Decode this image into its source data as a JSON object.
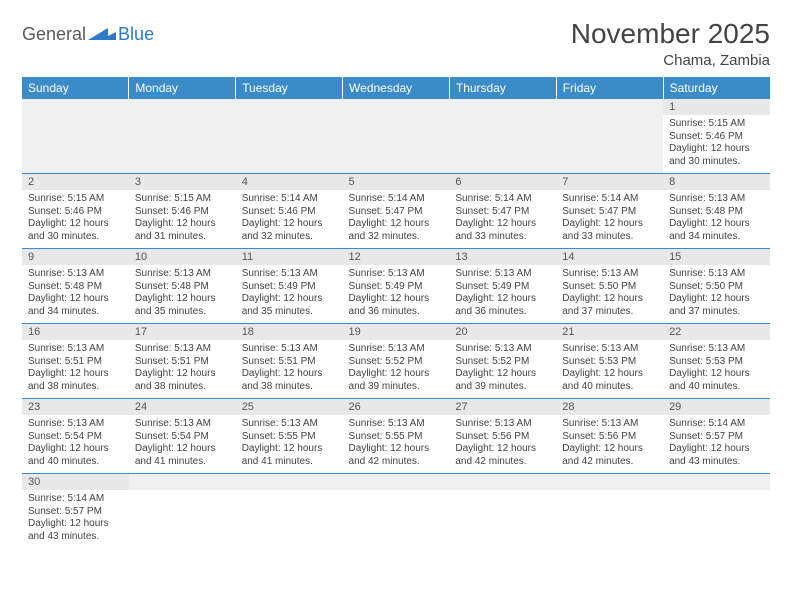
{
  "brand": {
    "text1": "General",
    "text2": "Blue"
  },
  "title": "November 2025",
  "location": "Chama, Zambia",
  "colors": {
    "header_bg": "#3b8bc9",
    "header_text": "#ffffff",
    "daynum_bg": "#e8e8e8",
    "cell_border": "#3b8bc9",
    "empty_bg": "#f0f0f0",
    "text": "#444444",
    "brand_gray": "#5a5a5a",
    "brand_blue": "#2d7bc4"
  },
  "weekdays": [
    "Sunday",
    "Monday",
    "Tuesday",
    "Wednesday",
    "Thursday",
    "Friday",
    "Saturday"
  ],
  "weeks": [
    [
      null,
      null,
      null,
      null,
      null,
      null,
      {
        "n": "1",
        "sr": "Sunrise: 5:15 AM",
        "ss": "Sunset: 5:46 PM",
        "d1": "Daylight: 12 hours",
        "d2": "and 30 minutes."
      }
    ],
    [
      {
        "n": "2",
        "sr": "Sunrise: 5:15 AM",
        "ss": "Sunset: 5:46 PM",
        "d1": "Daylight: 12 hours",
        "d2": "and 30 minutes."
      },
      {
        "n": "3",
        "sr": "Sunrise: 5:15 AM",
        "ss": "Sunset: 5:46 PM",
        "d1": "Daylight: 12 hours",
        "d2": "and 31 minutes."
      },
      {
        "n": "4",
        "sr": "Sunrise: 5:14 AM",
        "ss": "Sunset: 5:46 PM",
        "d1": "Daylight: 12 hours",
        "d2": "and 32 minutes."
      },
      {
        "n": "5",
        "sr": "Sunrise: 5:14 AM",
        "ss": "Sunset: 5:47 PM",
        "d1": "Daylight: 12 hours",
        "d2": "and 32 minutes."
      },
      {
        "n": "6",
        "sr": "Sunrise: 5:14 AM",
        "ss": "Sunset: 5:47 PM",
        "d1": "Daylight: 12 hours",
        "d2": "and 33 minutes."
      },
      {
        "n": "7",
        "sr": "Sunrise: 5:14 AM",
        "ss": "Sunset: 5:47 PM",
        "d1": "Daylight: 12 hours",
        "d2": "and 33 minutes."
      },
      {
        "n": "8",
        "sr": "Sunrise: 5:13 AM",
        "ss": "Sunset: 5:48 PM",
        "d1": "Daylight: 12 hours",
        "d2": "and 34 minutes."
      }
    ],
    [
      {
        "n": "9",
        "sr": "Sunrise: 5:13 AM",
        "ss": "Sunset: 5:48 PM",
        "d1": "Daylight: 12 hours",
        "d2": "and 34 minutes."
      },
      {
        "n": "10",
        "sr": "Sunrise: 5:13 AM",
        "ss": "Sunset: 5:48 PM",
        "d1": "Daylight: 12 hours",
        "d2": "and 35 minutes."
      },
      {
        "n": "11",
        "sr": "Sunrise: 5:13 AM",
        "ss": "Sunset: 5:49 PM",
        "d1": "Daylight: 12 hours",
        "d2": "and 35 minutes."
      },
      {
        "n": "12",
        "sr": "Sunrise: 5:13 AM",
        "ss": "Sunset: 5:49 PM",
        "d1": "Daylight: 12 hours",
        "d2": "and 36 minutes."
      },
      {
        "n": "13",
        "sr": "Sunrise: 5:13 AM",
        "ss": "Sunset: 5:49 PM",
        "d1": "Daylight: 12 hours",
        "d2": "and 36 minutes."
      },
      {
        "n": "14",
        "sr": "Sunrise: 5:13 AM",
        "ss": "Sunset: 5:50 PM",
        "d1": "Daylight: 12 hours",
        "d2": "and 37 minutes."
      },
      {
        "n": "15",
        "sr": "Sunrise: 5:13 AM",
        "ss": "Sunset: 5:50 PM",
        "d1": "Daylight: 12 hours",
        "d2": "and 37 minutes."
      }
    ],
    [
      {
        "n": "16",
        "sr": "Sunrise: 5:13 AM",
        "ss": "Sunset: 5:51 PM",
        "d1": "Daylight: 12 hours",
        "d2": "and 38 minutes."
      },
      {
        "n": "17",
        "sr": "Sunrise: 5:13 AM",
        "ss": "Sunset: 5:51 PM",
        "d1": "Daylight: 12 hours",
        "d2": "and 38 minutes."
      },
      {
        "n": "18",
        "sr": "Sunrise: 5:13 AM",
        "ss": "Sunset: 5:51 PM",
        "d1": "Daylight: 12 hours",
        "d2": "and 38 minutes."
      },
      {
        "n": "19",
        "sr": "Sunrise: 5:13 AM",
        "ss": "Sunset: 5:52 PM",
        "d1": "Daylight: 12 hours",
        "d2": "and 39 minutes."
      },
      {
        "n": "20",
        "sr": "Sunrise: 5:13 AM",
        "ss": "Sunset: 5:52 PM",
        "d1": "Daylight: 12 hours",
        "d2": "and 39 minutes."
      },
      {
        "n": "21",
        "sr": "Sunrise: 5:13 AM",
        "ss": "Sunset: 5:53 PM",
        "d1": "Daylight: 12 hours",
        "d2": "and 40 minutes."
      },
      {
        "n": "22",
        "sr": "Sunrise: 5:13 AM",
        "ss": "Sunset: 5:53 PM",
        "d1": "Daylight: 12 hours",
        "d2": "and 40 minutes."
      }
    ],
    [
      {
        "n": "23",
        "sr": "Sunrise: 5:13 AM",
        "ss": "Sunset: 5:54 PM",
        "d1": "Daylight: 12 hours",
        "d2": "and 40 minutes."
      },
      {
        "n": "24",
        "sr": "Sunrise: 5:13 AM",
        "ss": "Sunset: 5:54 PM",
        "d1": "Daylight: 12 hours",
        "d2": "and 41 minutes."
      },
      {
        "n": "25",
        "sr": "Sunrise: 5:13 AM",
        "ss": "Sunset: 5:55 PM",
        "d1": "Daylight: 12 hours",
        "d2": "and 41 minutes."
      },
      {
        "n": "26",
        "sr": "Sunrise: 5:13 AM",
        "ss": "Sunset: 5:55 PM",
        "d1": "Daylight: 12 hours",
        "d2": "and 42 minutes."
      },
      {
        "n": "27",
        "sr": "Sunrise: 5:13 AM",
        "ss": "Sunset: 5:56 PM",
        "d1": "Daylight: 12 hours",
        "d2": "and 42 minutes."
      },
      {
        "n": "28",
        "sr": "Sunrise: 5:13 AM",
        "ss": "Sunset: 5:56 PM",
        "d1": "Daylight: 12 hours",
        "d2": "and 42 minutes."
      },
      {
        "n": "29",
        "sr": "Sunrise: 5:14 AM",
        "ss": "Sunset: 5:57 PM",
        "d1": "Daylight: 12 hours",
        "d2": "and 43 minutes."
      }
    ],
    [
      {
        "n": "30",
        "sr": "Sunrise: 5:14 AM",
        "ss": "Sunset: 5:57 PM",
        "d1": "Daylight: 12 hours",
        "d2": "and 43 minutes."
      },
      null,
      null,
      null,
      null,
      null,
      null
    ]
  ]
}
